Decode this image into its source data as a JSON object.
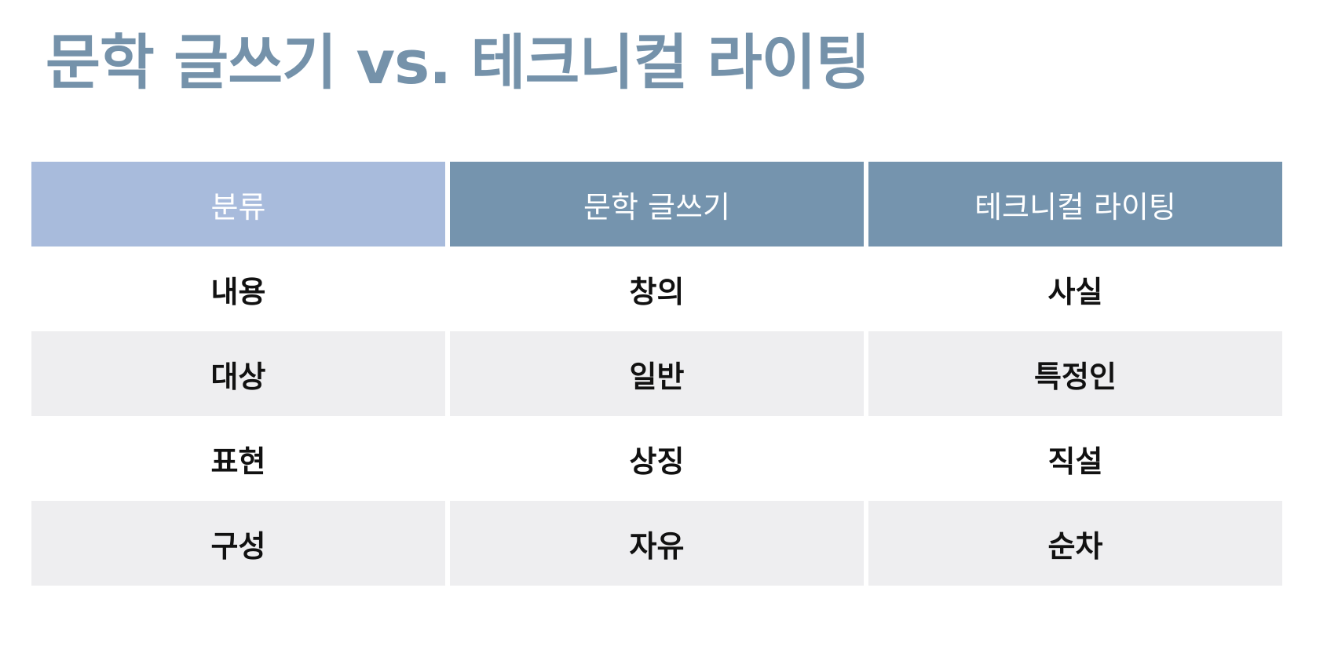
{
  "slide": {
    "title": "문학 글쓰기 vs. 테크니컬 라이팅"
  },
  "table": {
    "headers": [
      "분류",
      "문학 글쓰기",
      "테크니컬 라이팅"
    ],
    "rows": [
      [
        "내용",
        "창의",
        "사실"
      ],
      [
        "대상",
        "일반",
        "특정인"
      ],
      [
        "표현",
        "상징",
        "직설"
      ],
      [
        "구성",
        "자유",
        "순차"
      ]
    ]
  },
  "colors": {
    "title": "#7592aa",
    "header_category": "#a8bbdc",
    "header_columns": "#7594ae",
    "row_stripe": "#eeeef0"
  }
}
